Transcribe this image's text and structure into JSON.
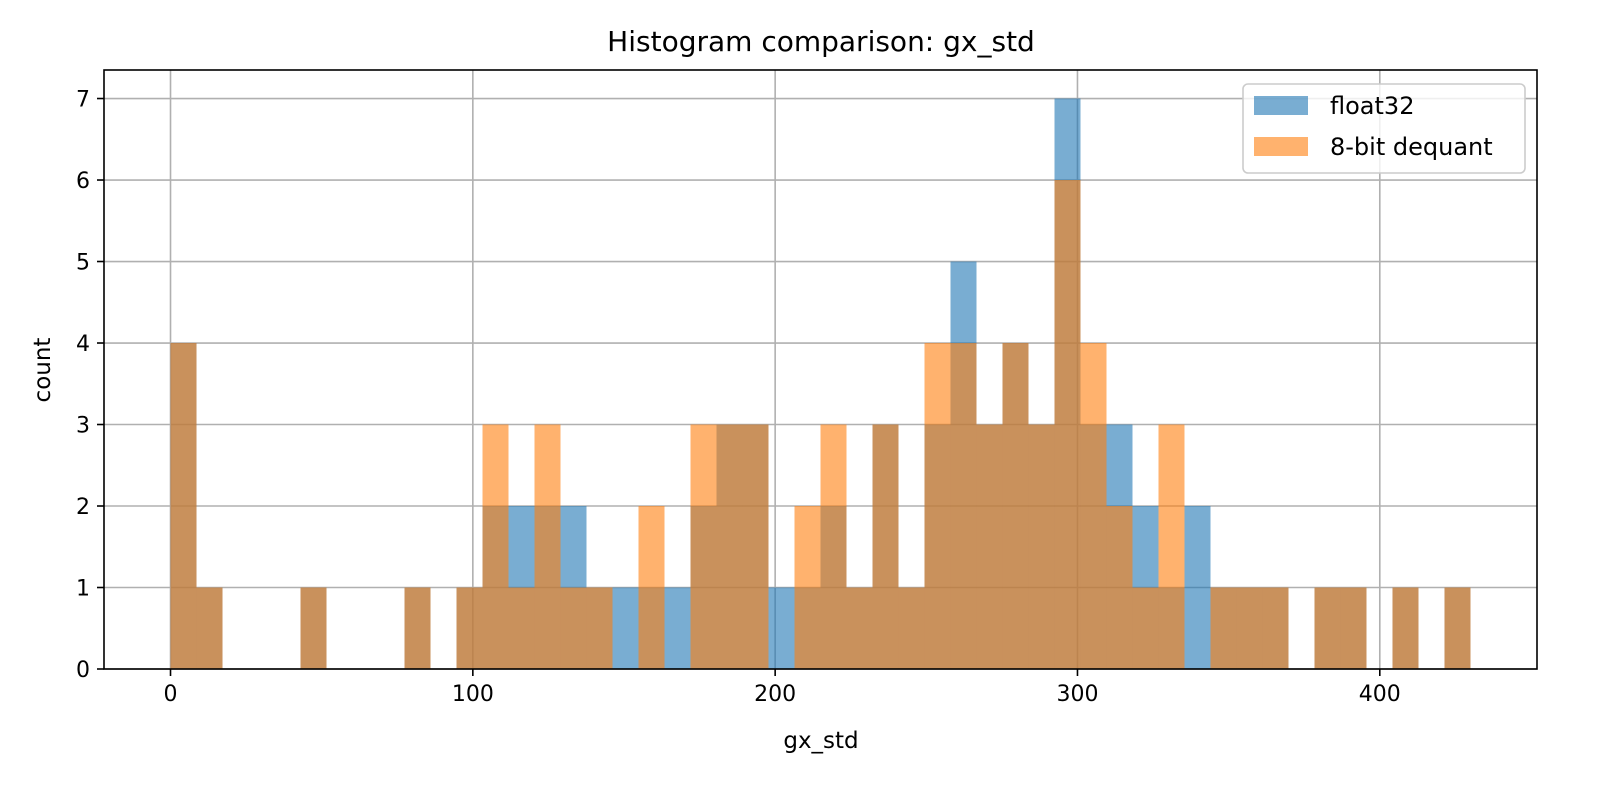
{
  "chart_data": {
    "type": "bar",
    "title": "Histogram comparison: gx_std",
    "xlabel": "gx_std",
    "ylabel": "count",
    "xlim": [
      -22,
      452
    ],
    "ylim": [
      0,
      7.35
    ],
    "xticks": [
      0,
      100,
      200,
      300,
      400
    ],
    "yticks": [
      0,
      1,
      2,
      3,
      4,
      5,
      6,
      7
    ],
    "grid": true,
    "legend_position": "top-right",
    "bin_edges": [
      0,
      8.6,
      17.2,
      25.8,
      34.4,
      43.0,
      51.6,
      60.2,
      68.8,
      77.4,
      86.0,
      94.6,
      103.2,
      111.8,
      120.4,
      129.0,
      137.6,
      146.2,
      154.8,
      163.4,
      172.0,
      180.6,
      189.2,
      197.8,
      206.4,
      215.0,
      223.6,
      232.2,
      240.8,
      249.4,
      258.0,
      266.6,
      275.2,
      283.8,
      292.4,
      301.0,
      309.6,
      318.2,
      326.8,
      335.4,
      344.0,
      352.6,
      361.2,
      369.8,
      378.4,
      387.0,
      395.6,
      404.2,
      412.8,
      421.4,
      430.0
    ],
    "series": [
      {
        "name": "float32",
        "color": "#1f77b4",
        "alpha": 0.6,
        "values": [
          4,
          1,
          0,
          0,
          0,
          1,
          0,
          0,
          0,
          1,
          0,
          1,
          2,
          2,
          2,
          2,
          1,
          1,
          1,
          1,
          2,
          3,
          3,
          1,
          1,
          2,
          1,
          3,
          1,
          3,
          5,
          3,
          4,
          3,
          7,
          3,
          3,
          2,
          1,
          2,
          1,
          1,
          1,
          0,
          1,
          1,
          0,
          1,
          0,
          1
        ]
      },
      {
        "name": "8-bit dequant",
        "color": "#ff7f0e",
        "alpha": 0.6,
        "values": [
          4,
          1,
          0,
          0,
          0,
          1,
          0,
          0,
          0,
          1,
          0,
          1,
          3,
          1,
          3,
          1,
          1,
          0,
          2,
          0,
          3,
          3,
          3,
          0,
          2,
          3,
          1,
          3,
          1,
          4,
          4,
          3,
          4,
          3,
          6,
          4,
          2,
          1,
          3,
          0,
          1,
          1,
          1,
          0,
          1,
          1,
          0,
          1,
          0,
          1
        ]
      }
    ]
  }
}
